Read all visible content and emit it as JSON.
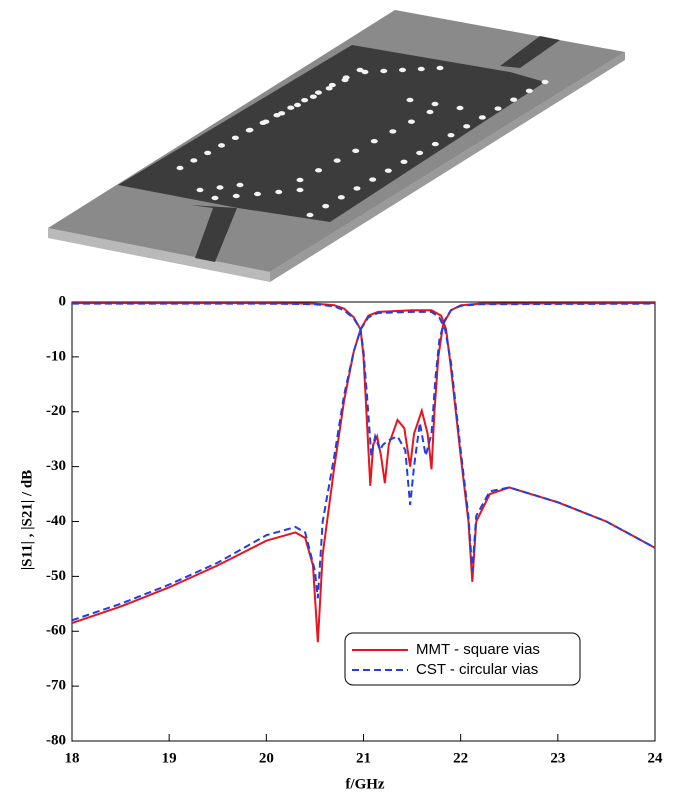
{
  "chart_data": {
    "type": "line",
    "xlabel": "f/GHz",
    "ylabel": "|S11| , |S21|  /  dB",
    "xlim": [
      18,
      24
    ],
    "ylim": [
      -80,
      0
    ],
    "xticks": [
      18,
      19,
      20,
      21,
      22,
      23,
      24
    ],
    "yticks": [
      0,
      -10,
      -20,
      -30,
      -40,
      -50,
      -60,
      -70,
      -80
    ],
    "legend": "lower-right",
    "series": [
      {
        "name": "MMT - square vias",
        "color": "#e8141e",
        "dash": "solid",
        "curves": [
          {
            "x": [
              18,
              20,
              20.5,
              20.7,
              20.8,
              20.9,
              20.97,
              21.0,
              21.03,
              21.07,
              21.1,
              21.14,
              21.18,
              21.22,
              21.26,
              21.35,
              21.42,
              21.48,
              21.52,
              21.6,
              21.66,
              21.7,
              21.73,
              21.77,
              21.82,
              21.9,
              22.0,
              22.2,
              24
            ],
            "values": [
              -0.2,
              -0.2,
              -0.3,
              -0.6,
              -1.2,
              -2.8,
              -5,
              -10,
              -20,
              -33.5,
              -26,
              -24.5,
              -28,
              -33,
              -26,
              -21.5,
              -23,
              -30,
              -24,
              -19.8,
              -24,
              -30.5,
              -20,
              -10,
              -4,
              -1.5,
              -0.6,
              -0.3,
              -0.2
            ]
          },
          {
            "x": [
              18,
              18.5,
              19,
              19.5,
              20,
              20.3,
              20.4,
              20.48,
              20.53,
              20.58,
              20.7,
              20.8,
              20.9,
              20.97,
              21.05,
              21.15,
              21.5,
              21.7,
              21.8,
              21.85,
              21.9,
              22.0,
              22.08,
              22.12,
              22.16,
              22.3,
              22.5,
              23,
              23.5,
              24
            ],
            "values": [
              -58.5,
              -55.5,
              -52,
              -48,
              -43.5,
              -42,
              -43,
              -48,
              -62,
              -46,
              -30,
              -18,
              -9,
              -5,
              -2.5,
              -1.8,
              -1.5,
              -1.5,
              -2.5,
              -5,
              -12,
              -28,
              -40,
              -51,
              -40,
              -35,
              -33.8,
              -36.5,
              -40,
              -44.8
            ]
          }
        ]
      },
      {
        "name": "CST - circular vias",
        "color": "#1f3fe0",
        "dash": "dashed",
        "curves": [
          {
            "x": [
              18,
              20,
              20.5,
              20.7,
              20.8,
              20.9,
              20.97,
              21.0,
              21.04,
              21.08,
              21.12,
              21.17,
              21.2,
              21.28,
              21.35,
              21.43,
              21.48,
              21.52,
              21.58,
              21.64,
              21.7,
              21.74,
              21.78,
              21.83,
              21.9,
              22.0,
              22.2,
              24
            ],
            "values": [
              -0.3,
              -0.3,
              -0.4,
              -0.8,
              -1.5,
              -3,
              -5,
              -9,
              -18,
              -28,
              -24.5,
              -27,
              -26,
              -25,
              -24.5,
              -27,
              -37,
              -30,
              -22,
              -28,
              -24,
              -14,
              -7,
              -3.5,
              -1.5,
              -0.7,
              -0.4,
              -0.3
            ]
          },
          {
            "x": [
              18,
              18.5,
              19,
              19.5,
              20,
              20.3,
              20.4,
              20.5,
              20.53,
              20.58,
              20.7,
              20.8,
              20.9,
              20.97,
              21.05,
              21.15,
              21.5,
              21.7,
              21.78,
              21.84,
              21.9,
              22.0,
              22.08,
              22.12,
              22.16,
              22.3,
              22.5,
              23,
              23.5,
              24
            ],
            "values": [
              -58,
              -55,
              -51.5,
              -47.5,
              -42.5,
              -41,
              -42,
              -49,
              -54,
              -40,
              -28,
              -17,
              -9,
              -5,
              -2.8,
              -2,
              -1.8,
              -1.8,
              -2.8,
              -5,
              -11,
              -27,
              -39,
              -49,
              -39,
              -34.5,
              -33.8,
              -36.5,
              -40,
              -44.8
            ]
          }
        ]
      }
    ]
  }
}
